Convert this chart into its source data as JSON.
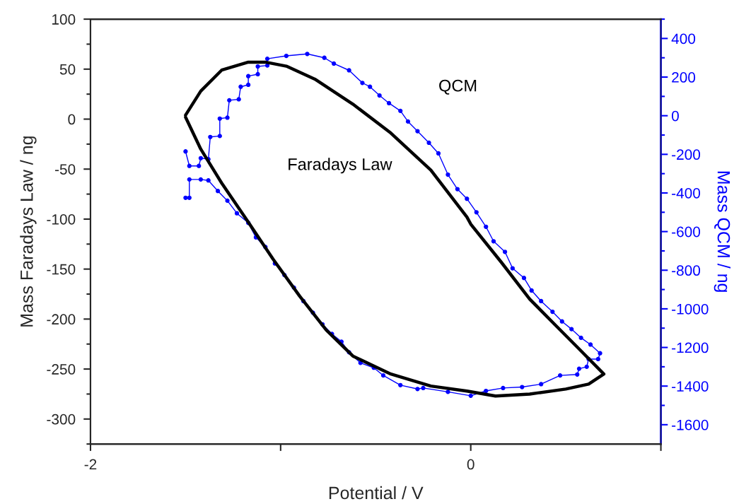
{
  "chart_data": {
    "type": "line",
    "xlabel": "Potential / V",
    "ylabel": "Mass Faradays Law / ng",
    "y2label": "Mass QCM / ng",
    "xlim": [
      -2,
      1
    ],
    "xticks": [
      -2,
      {
        "value": -1,
        "label": null
      },
      0,
      {
        "value": 1,
        "label": null
      }
    ],
    "ylim": [
      -325,
      100
    ],
    "yticks": [
      -300,
      -250,
      -200,
      -150,
      -100,
      -50,
      0,
      50,
      100
    ],
    "y2lim": [
      -1700,
      500
    ],
    "y2ticks": [
      -1600,
      -1400,
      -1200,
      -1000,
      -800,
      -600,
      -400,
      -200,
      0,
      200,
      400
    ],
    "grid": false,
    "legend": false,
    "series": [
      {
        "name": "Faradays Law",
        "color": "#000000",
        "axis": "y",
        "marker": "none",
        "line_style": "solid",
        "x": [
          -1.5,
          -1.42,
          -1.31,
          -1.17,
          -1.08,
          -0.97,
          -0.82,
          -0.62,
          -0.42,
          -0.21,
          -0.02,
          0.0,
          0.16,
          0.31,
          0.45,
          0.56,
          0.7,
          0.62,
          0.5,
          0.31,
          0.13,
          -0.02,
          -0.21,
          -0.42,
          -0.62,
          -0.76,
          -0.9,
          -1.04,
          -1.17,
          -1.31,
          -1.42,
          -1.5
        ],
        "values": [
          4,
          28,
          49,
          57,
          57,
          53,
          40,
          15,
          -14,
          -51,
          -98,
          -105,
          -143,
          -180,
          -207,
          -228,
          -255,
          -265,
          -270,
          -275,
          -277,
          -272,
          -267,
          -255,
          -237,
          -211,
          -177,
          -140,
          -103,
          -64,
          -30,
          2
        ]
      },
      {
        "name": "QCM",
        "color": "#0000ff",
        "axis": "y2",
        "marker": "circle",
        "line_style": "solid",
        "x": [
          -1.5,
          -1.48,
          -1.43,
          -1.42,
          -1.38,
          -1.37,
          -1.32,
          -1.32,
          -1.28,
          -1.27,
          -1.22,
          -1.21,
          -1.17,
          -1.17,
          -1.12,
          -1.12,
          -1.07,
          -1.07,
          -0.97,
          -0.86,
          -0.77,
          -0.72,
          -0.64,
          -0.57,
          -0.53,
          -0.48,
          -0.43,
          -0.37,
          -0.33,
          -0.28,
          -0.22,
          -0.17,
          -0.12,
          -0.07,
          -0.02,
          0.03,
          0.08,
          0.12,
          0.18,
          0.22,
          0.28,
          0.32,
          0.37,
          0.43,
          0.48,
          0.53,
          0.58,
          0.63,
          0.68,
          0.67,
          0.62,
          0.61,
          0.57,
          0.56,
          0.47,
          0.37,
          0.27,
          0.17,
          0.08,
          0.0,
          -0.12,
          -0.25,
          -0.28,
          -0.37,
          -0.46,
          -0.51,
          -0.58,
          -0.64,
          -0.68,
          -0.73,
          -0.78,
          -0.83,
          -0.88,
          -0.93,
          -0.98,
          -1.03,
          -1.08,
          -1.13,
          -1.17,
          -1.23,
          -1.28,
          -1.33,
          -1.38,
          -1.42,
          -1.48,
          -1.48,
          -1.5
        ],
        "values": [
          -185,
          -260,
          -260,
          -220,
          -225,
          -110,
          -105,
          -15,
          -10,
          80,
          85,
          150,
          160,
          205,
          215,
          255,
          260,
          295,
          310,
          320,
          300,
          270,
          235,
          170,
          150,
          105,
          65,
          25,
          -30,
          -80,
          -140,
          -195,
          -305,
          -380,
          -430,
          -500,
          -575,
          -650,
          -705,
          -790,
          -840,
          -905,
          -960,
          -1015,
          -1065,
          -1105,
          -1150,
          -1185,
          -1230,
          -1260,
          -1260,
          -1300,
          -1310,
          -1340,
          -1345,
          -1390,
          -1405,
          -1410,
          -1425,
          -1450,
          -1430,
          -1410,
          -1415,
          -1395,
          -1345,
          -1305,
          -1280,
          -1225,
          -1170,
          -1130,
          -1080,
          -1020,
          -960,
          -890,
          -825,
          -765,
          -680,
          -630,
          -555,
          -505,
          -440,
          -390,
          -335,
          -330,
          -330,
          -425,
          -425
        ]
      }
    ]
  }
}
